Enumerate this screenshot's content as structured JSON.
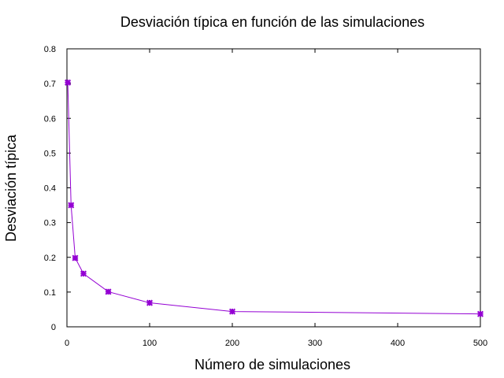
{
  "chart_data": {
    "type": "line",
    "title": "Desviación típica en función de las simulaciones",
    "xlabel": "Número de simulaciones",
    "ylabel": "Desviación típica",
    "xlim": [
      0,
      500
    ],
    "ylim": [
      0,
      0.8
    ],
    "xticks": [
      0,
      100,
      200,
      300,
      400,
      500
    ],
    "yticks": [
      0,
      0.1,
      0.2,
      0.3,
      0.4,
      0.5,
      0.6,
      0.7,
      0.8
    ],
    "xtick_labels": [
      "0",
      "100",
      "200",
      "300",
      "400",
      "500"
    ],
    "ytick_labels": [
      "0",
      "0.1",
      "0.2",
      "0.3",
      "0.4",
      "0.5",
      "0.6",
      "0.7",
      "0.8"
    ],
    "grid": false,
    "series": [
      {
        "name": "Desviación típica",
        "color": "#9400d3",
        "x": [
          1,
          5,
          10,
          20,
          50,
          100,
          200,
          500
        ],
        "y": [
          0.703,
          0.35,
          0.198,
          0.153,
          0.101,
          0.069,
          0.044,
          0.037
        ]
      }
    ]
  }
}
